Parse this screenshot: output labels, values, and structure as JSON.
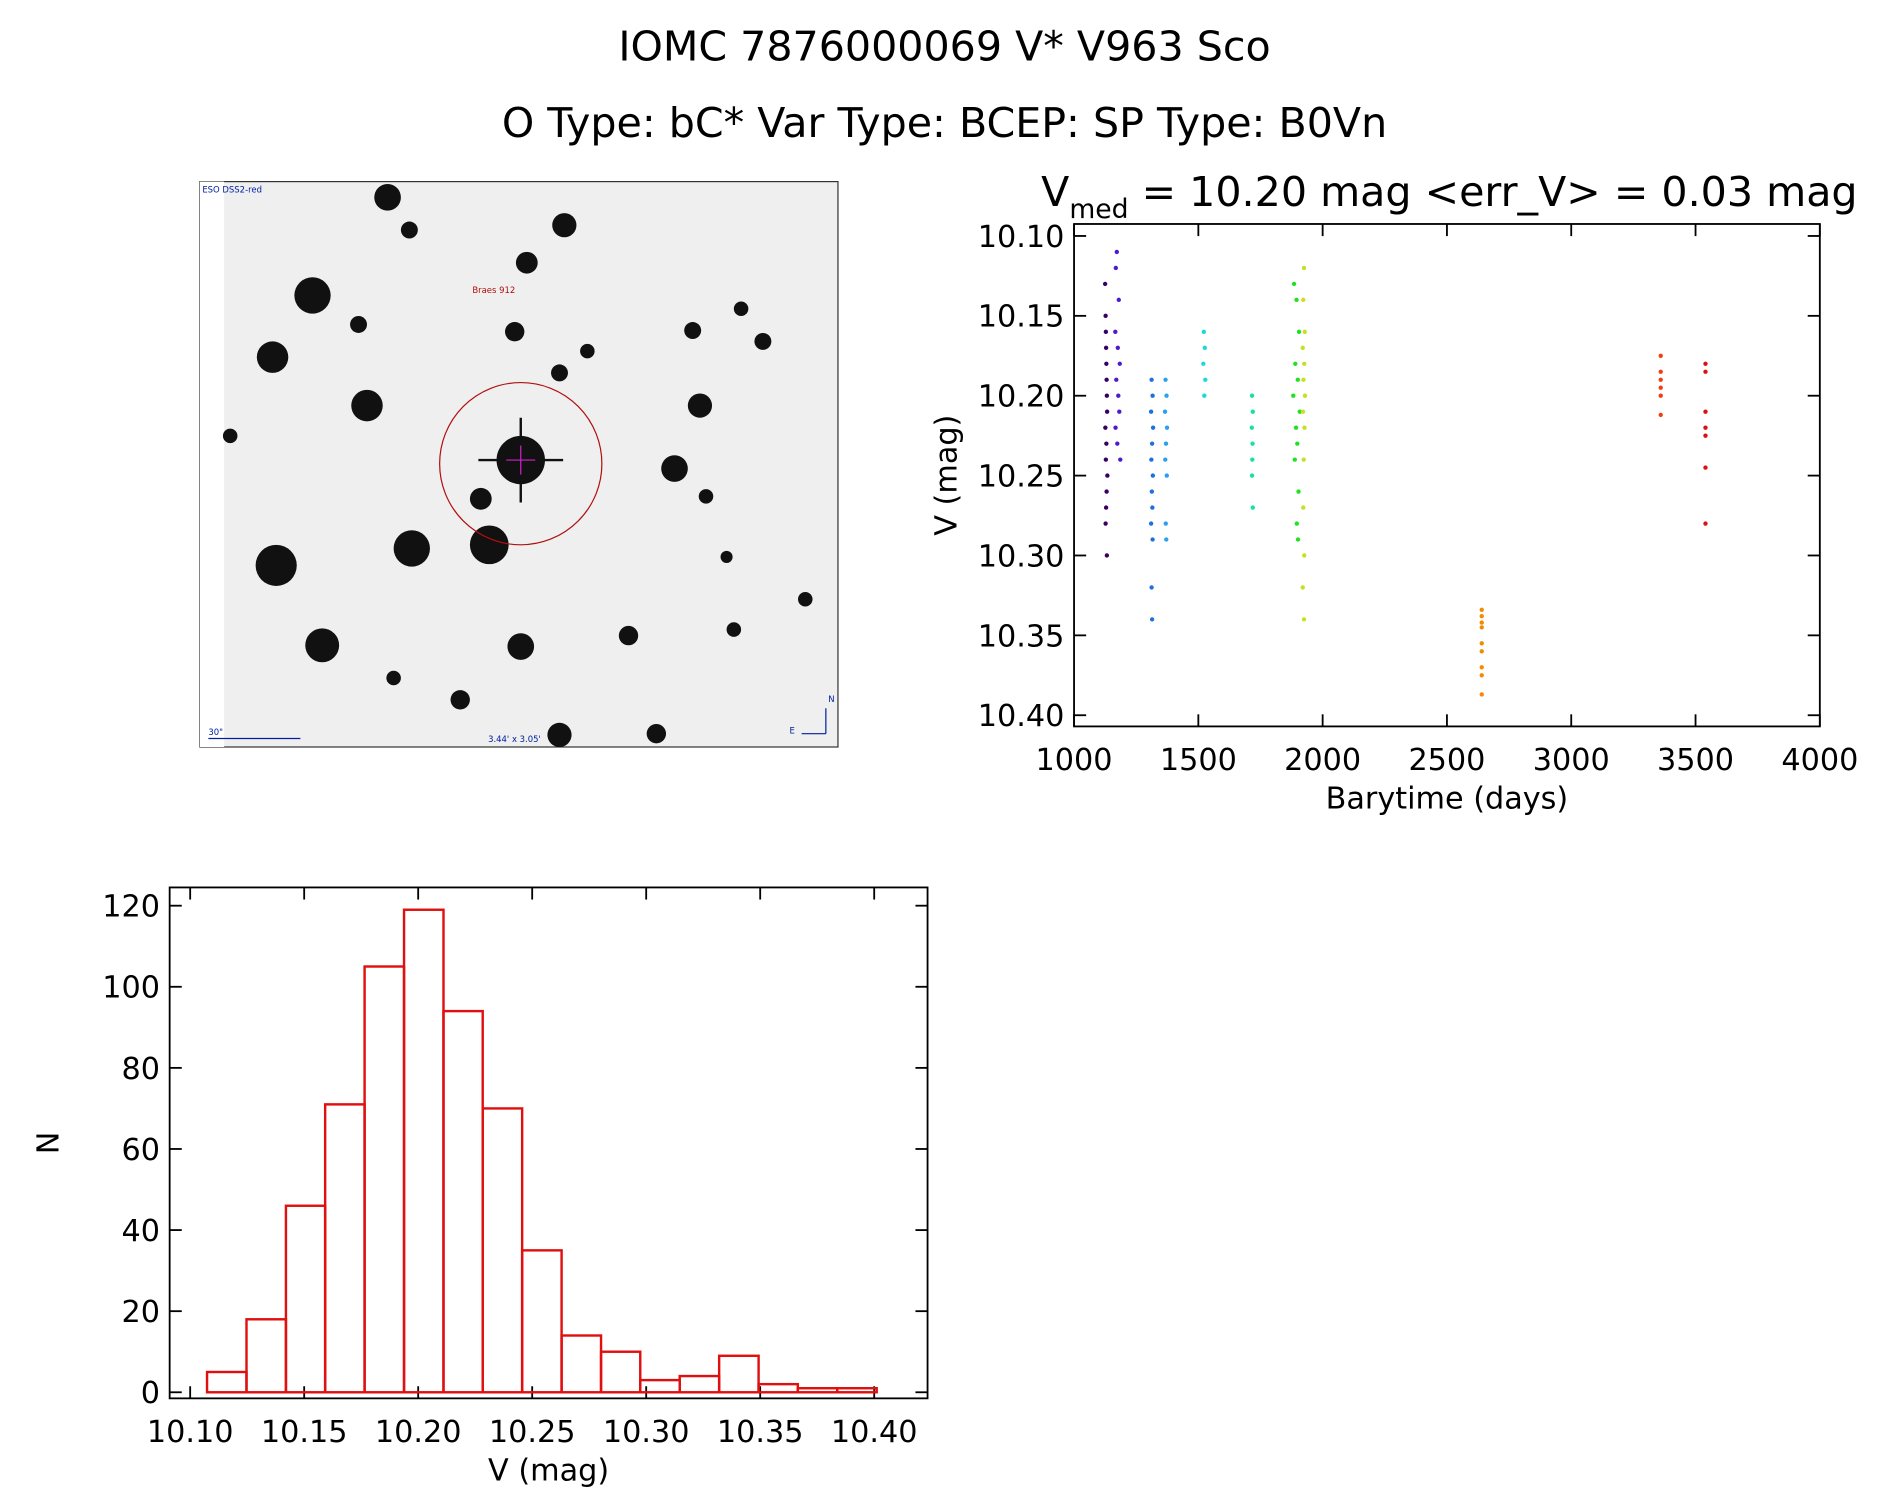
{
  "page_title": [
    "IOMC 7876000069   V* V963 Sco",
    "O Type: bC*  Var Type: BCEP:  SP Type: B0Vn"
  ],
  "image_panel": {
    "labels": [
      "ESO DSS2-red",
      "Braes 912",
      "30\"",
      "3.44' x 3.05'",
      "N",
      "E"
    ]
  },
  "chart_data": [
    {
      "type": "scatter",
      "title": {
        "main": "V",
        "sub": "med",
        "rest": " = 10.20 mag <err_V> = 0.03 mag"
      },
      "x_label": "Barytime (days)",
      "y_label": "V (mag)",
      "xlim": [
        1000,
        4000
      ],
      "xticks": [
        1000,
        1500,
        2000,
        2500,
        3000,
        3500,
        4000
      ],
      "ylim": [
        10.407,
        10.0925
      ],
      "yticks": [
        {
          "value": 10.1,
          "label": "10.10"
        },
        10.15,
        {
          "value": 10.2,
          "label": "10.20"
        },
        10.25,
        {
          "value": 10.3,
          "label": "10.30"
        },
        10.35,
        {
          "value": 10.4,
          "label": "10.40"
        }
      ],
      "series": [
        {
          "color": "#3a0060",
          "x": [
            1125,
            1127,
            1128,
            1129,
            1130,
            1131,
            1132,
            1133,
            1126,
            1130,
            1128,
            1134,
            1131,
            1129,
            1127,
            1132
          ],
          "values": [
            10.13,
            10.15,
            10.16,
            10.17,
            10.18,
            10.19,
            10.2,
            10.21,
            10.22,
            10.23,
            10.24,
            10.25,
            10.26,
            10.27,
            10.28,
            10.3
          ]
        },
        {
          "color": "#4b1ccc",
          "x": [
            1172,
            1168,
            1180,
            1166,
            1176,
            1184,
            1170,
            1178,
            1182,
            1167,
            1174,
            1186
          ],
          "values": [
            10.11,
            10.12,
            10.14,
            10.16,
            10.17,
            10.18,
            10.19,
            10.2,
            10.21,
            10.22,
            10.23,
            10.24
          ]
        },
        {
          "color": "#1e6fe0",
          "x": [
            1312,
            1316,
            1310,
            1318,
            1314,
            1311,
            1317,
            1313,
            1315,
            1310,
            1316,
            1312,
            1314
          ],
          "values": [
            10.19,
            10.2,
            10.21,
            10.22,
            10.23,
            10.24,
            10.25,
            10.26,
            10.27,
            10.28,
            10.29,
            10.32,
            10.34
          ]
        },
        {
          "color": "#2aa0f0",
          "x": [
            1368,
            1372,
            1366,
            1374,
            1370,
            1367,
            1373,
            1369,
            1371
          ],
          "values": [
            10.19,
            10.2,
            10.21,
            10.22,
            10.23,
            10.24,
            10.25,
            10.28,
            10.29
          ]
        },
        {
          "color": "#19d8e0",
          "x": [
            1522,
            1526,
            1520,
            1528,
            1524
          ],
          "values": [
            10.16,
            10.17,
            10.18,
            10.19,
            10.2
          ]
        },
        {
          "color": "#19e0a0",
          "x": [
            1716,
            1719,
            1715,
            1718,
            1717,
            1716,
            1719
          ],
          "values": [
            10.2,
            10.21,
            10.22,
            10.23,
            10.24,
            10.25,
            10.27
          ]
        },
        {
          "color": "#22e022",
          "x": [
            1885,
            1895,
            1905,
            1890,
            1900,
            1882,
            1908,
            1893,
            1898,
            1888,
            1903,
            1896,
            1901
          ],
          "values": [
            10.13,
            10.14,
            10.16,
            10.18,
            10.19,
            10.2,
            10.21,
            10.22,
            10.23,
            10.24,
            10.26,
            10.28,
            10.29
          ]
        },
        {
          "color": "#c8e020",
          "x": [
            1925,
            1922,
            1928,
            1920,
            1926,
            1923,
            1929,
            1921,
            1927,
            1924,
            1922,
            1926,
            1920,
            1925
          ],
          "values": [
            10.12,
            10.14,
            10.16,
            10.17,
            10.18,
            10.19,
            10.2,
            10.21,
            10.22,
            10.24,
            10.27,
            10.3,
            10.32,
            10.34
          ]
        },
        {
          "color": "#f08c00",
          "x": [
            2640,
            2640,
            2640,
            2640,
            2640,
            2640,
            2640,
            2640,
            2640
          ],
          "values": [
            10.334,
            10.338,
            10.342,
            10.345,
            10.355,
            10.36,
            10.37,
            10.375,
            10.387
          ]
        },
        {
          "color": "#f04010",
          "x": [
            3360,
            3360,
            3360,
            3360,
            3360,
            3360
          ],
          "values": [
            10.175,
            10.185,
            10.19,
            10.195,
            10.2,
            10.212
          ]
        },
        {
          "color": "#e01010",
          "x": [
            3540,
            3540,
            3540,
            3540,
            3540,
            3540,
            3540
          ],
          "values": [
            10.18,
            10.185,
            10.21,
            10.22,
            10.225,
            10.245,
            10.28
          ]
        }
      ]
    },
    {
      "type": "histogram",
      "x_label": "V (mag)",
      "y_label": "N",
      "color": "#e01010",
      "bins": [
        10.1074,
        10.1247,
        10.142,
        10.1592,
        10.1765,
        10.1938,
        10.2111,
        10.2283,
        10.2456,
        10.2629,
        10.2802,
        10.2974,
        10.3147,
        10.332,
        10.3493,
        10.3665,
        10.3838,
        10.4011
      ],
      "values": [
        5,
        18,
        46,
        71,
        105,
        119,
        94,
        70,
        35,
        14,
        10,
        3,
        4,
        9,
        2,
        1,
        1
      ],
      "xlim": [
        10.091,
        10.4234
      ],
      "xticks": [
        {
          "value": 10.1,
          "label": "10.10"
        },
        10.15,
        {
          "value": 10.2,
          "label": "10.20"
        },
        10.25,
        {
          "value": 10.3,
          "label": "10.30"
        },
        10.35,
        {
          "value": 10.4,
          "label": "10.40"
        }
      ],
      "ylim": [
        -1.5,
        124.5
      ],
      "yticks": [
        0,
        20,
        40,
        60,
        80,
        100,
        120
      ]
    }
  ]
}
